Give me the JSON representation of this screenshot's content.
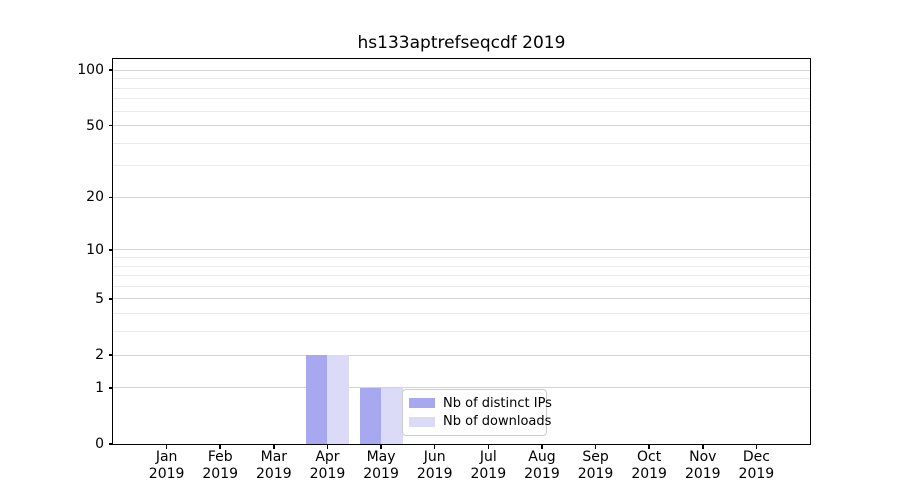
{
  "title": "hs133aptrefseqcdf 2019",
  "chart_data": {
    "type": "bar",
    "title": "hs133aptrefseqcdf 2019",
    "categories": [
      "Jan",
      "Feb",
      "Mar",
      "Apr",
      "May",
      "Jun",
      "Jul",
      "Aug",
      "Sep",
      "Oct",
      "Nov",
      "Dec"
    ],
    "x_year_label": "2019",
    "series": [
      {
        "name": "Nb of distinct IPs",
        "color": "#a8a8f0",
        "values": [
          0,
          0,
          0,
          2,
          1,
          0,
          0,
          0,
          0,
          0,
          0,
          0
        ]
      },
      {
        "name": "Nb of downloads",
        "color": "#dbdbf8",
        "values": [
          0,
          0,
          0,
          2,
          1,
          0,
          0,
          0,
          0,
          0,
          0,
          0
        ]
      }
    ],
    "xlabel": "",
    "ylabel": "",
    "yscale": "log1p",
    "ylim": [
      0,
      115
    ],
    "yticks": [
      0,
      1,
      2,
      5,
      10,
      20,
      50,
      100
    ],
    "yticks_minor": [
      3,
      4,
      6,
      7,
      8,
      9,
      30,
      40,
      60,
      70,
      80,
      90
    ],
    "grid": true,
    "legend_position": "lower center"
  },
  "colors": {
    "background": "#ffffff",
    "text": "#000000",
    "axis_frame": "#000000",
    "grid_major": "#d4d4d4",
    "grid_minor": "#e9e9e9",
    "legend_border": "#cccccc",
    "legend_background": "rgba(255,255,255,0.8)"
  }
}
